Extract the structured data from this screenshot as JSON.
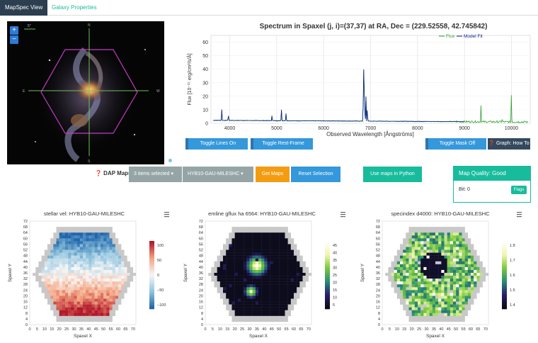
{
  "tabs": [
    {
      "label": "MapSpec View",
      "active": true
    },
    {
      "label": "Galaxy Properties",
      "active": false
    }
  ],
  "galaxy": {
    "zoom_in": "+",
    "zoom_out": "−",
    "scale_label": "5\"",
    "compass": {
      "n": "N",
      "s": "S",
      "e": "E",
      "w": "W"
    }
  },
  "spectrum": {
    "title": "Spectrum in Spaxel (j, i)=(37,37) at RA, Dec = (229.52558, 42.745842)",
    "legend": {
      "flux": "Flux",
      "model": "Model Fit"
    },
    "colors": {
      "flux": "#2ca02c",
      "model": "#0b1f8c"
    },
    "xlabel": "Observed Wavelength [Ångströms]",
    "ylabel": "Flux [10⁻¹⁷ erg/cm²/s/Å]",
    "xticks": [
      "4000",
      "5000",
      "6000",
      "7000",
      "8000",
      "9000",
      "10000"
    ],
    "yticks": [
      "0",
      "10",
      "20",
      "30",
      "40",
      "50",
      "60"
    ]
  },
  "buttons": {
    "toggle_lines": "Toggle Lines On",
    "toggle_rest": "Toggle Rest-Frame",
    "toggle_mask": "Toggle Mask Off",
    "graph_howto": "❓ Graph: How To"
  },
  "dap": {
    "label": "❓ DAP Maps",
    "items_selected": "3 items selected ▾",
    "property": "HYB10-GAU-MILESHC ▾",
    "get_maps": "Get Maps",
    "reset": "Reset Selection",
    "python": "Use maps in Python"
  },
  "quality": {
    "title": "Map Quality: Good",
    "bit": "Bit: 0",
    "flags": "Flags"
  },
  "maps": [
    {
      "title": "stellar vel: HYB10-GAU-MILESHC",
      "colorbar_ticks": [
        "100",
        "50",
        "0",
        "−50",
        "−100"
      ],
      "cmap": "rdbu"
    },
    {
      "title": "emline gflux ha 6564: HYB10-GAU-MILESHC",
      "colorbar_ticks": [
        "45",
        "40",
        "35",
        "30",
        "25",
        "20",
        "15",
        "10",
        "5"
      ],
      "cmap": "linear"
    },
    {
      "title": "specindex d4000: HYB10-GAU-MILESHC",
      "colorbar_ticks": [
        "1.8",
        "1.7",
        "1.6",
        "1.5",
        "1.4"
      ],
      "cmap": "linear"
    }
  ],
  "map_axes": {
    "xlabel": "Spaxel X",
    "ylabel": "Spaxel Y",
    "xticks": [
      "0",
      "5",
      "10",
      "15",
      "20",
      "25",
      "30",
      "35",
      "40",
      "45",
      "50",
      "55",
      "60",
      "65",
      "70"
    ],
    "yticks": [
      "72",
      "68",
      "64",
      "60",
      "56",
      "52",
      "48",
      "44",
      "40",
      "36",
      "32",
      "28",
      "24",
      "20",
      "16",
      "12",
      "8",
      "4",
      "0"
    ]
  }
}
